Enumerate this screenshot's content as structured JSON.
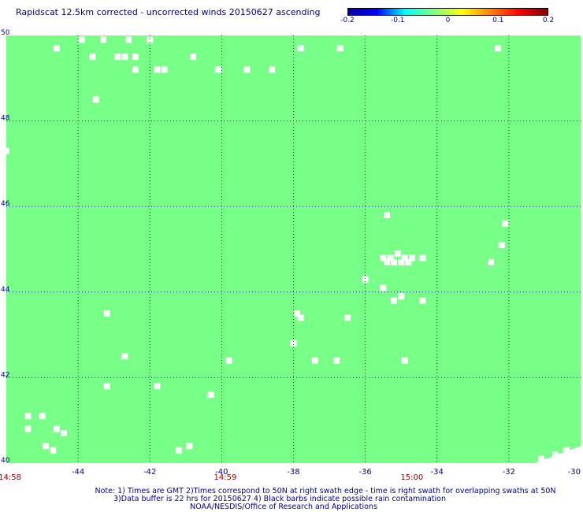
{
  "title": "Rapidscat 12.5km corrected - uncorrected winds 20150627 ascending",
  "colors": {
    "field": "#77ff88",
    "gridline": "#1a1a80",
    "text": "#00008b",
    "time_label": "#8b0000"
  },
  "colorbar": {
    "tick_labels": [
      "-0.2",
      "-0.1",
      "0",
      "0.1",
      "0.2"
    ],
    "tick_values": [
      -0.2,
      -0.1,
      0,
      0.1,
      0.2
    ],
    "range": [
      -0.2,
      0.2
    ],
    "colors": [
      "#0000a0",
      "#0000ff",
      "#00ffff",
      "#80ff80",
      "#ffff00",
      "#ff8000",
      "#ff0000",
      "#800000"
    ]
  },
  "time_labels": [
    {
      "text": "14:58",
      "lon": -45.9
    },
    {
      "text": "14:59",
      "lon": -39.9
    },
    {
      "text": "15:00",
      "lon": -34.7
    }
  ],
  "notes": [
    "Note: 1) Times are GMT 2)Times correspond to 50N at right swath edge - time is right swath for overlapping swaths at 50N",
    "3)Data buffer is 22 hrs for 20150627 4) Black barbs indicate possible rain contamination",
    "NOAA/NESDIS/Office of Research and Applications"
  ],
  "chart_data": {
    "type": "heatmap",
    "title": "Rapidscat 12.5km corrected - uncorrected winds 20150627 ascending",
    "xlim": [
      -46,
      -30
    ],
    "ylim": [
      40,
      50
    ],
    "x_ticks": [
      -44,
      -42,
      -40,
      -38,
      -36,
      -34,
      -32,
      -30
    ],
    "y_ticks": [
      40,
      42,
      44,
      46,
      48,
      50
    ],
    "x_tick_labels": [
      "-44",
      "-42",
      "-40",
      "-38",
      "-36",
      "-34",
      "-32",
      "-30"
    ],
    "y_tick_labels": [
      "40",
      "42",
      "44",
      "46",
      "48",
      "50"
    ],
    "grid": true,
    "field_value": 0,
    "missing_cells": [
      [
        -44.6,
        49.7
      ],
      [
        -43.9,
        49.9
      ],
      [
        -43.6,
        49.5
      ],
      [
        -43.3,
        49.9
      ],
      [
        -42.9,
        49.5
      ],
      [
        -42.7,
        49.5
      ],
      [
        -42.6,
        49.9
      ],
      [
        -42.4,
        49.5
      ],
      [
        -42.4,
        49.2
      ],
      [
        -42.0,
        49.9
      ],
      [
        -41.8,
        49.2
      ],
      [
        -41.6,
        49.2
      ],
      [
        -40.8,
        49.5
      ],
      [
        -40.1,
        49.2
      ],
      [
        -39.3,
        49.2
      ],
      [
        -38.6,
        49.2
      ],
      [
        -37.8,
        49.7
      ],
      [
        -36.7,
        49.7
      ],
      [
        -32.3,
        49.7
      ],
      [
        -43.5,
        48.5
      ],
      [
        -46.0,
        47.3
      ],
      [
        -35.4,
        45.8
      ],
      [
        -32.1,
        45.6
      ],
      [
        -32.2,
        45.1
      ],
      [
        -35.5,
        44.8
      ],
      [
        -35.3,
        44.8
      ],
      [
        -35.1,
        44.9
      ],
      [
        -34.9,
        44.8
      ],
      [
        -34.7,
        44.8
      ],
      [
        -34.4,
        44.8
      ],
      [
        -35.4,
        44.7
      ],
      [
        -35.2,
        44.7
      ],
      [
        -35.0,
        44.7
      ],
      [
        -34.8,
        44.7
      ],
      [
        -32.5,
        44.7
      ],
      [
        -36.0,
        44.3
      ],
      [
        -35.5,
        44.1
      ],
      [
        -35.0,
        43.9
      ],
      [
        -35.2,
        43.8
      ],
      [
        -34.4,
        43.8
      ],
      [
        -43.2,
        43.5
      ],
      [
        -37.9,
        43.5
      ],
      [
        -37.8,
        43.4
      ],
      [
        -36.5,
        43.4
      ],
      [
        -38.0,
        42.8
      ],
      [
        -42.7,
        42.5
      ],
      [
        -39.8,
        42.4
      ],
      [
        -37.4,
        42.4
      ],
      [
        -36.8,
        42.4
      ],
      [
        -34.9,
        42.4
      ],
      [
        -43.2,
        41.8
      ],
      [
        -41.8,
        41.8
      ],
      [
        -40.3,
        41.6
      ],
      [
        -45.4,
        41.1
      ],
      [
        -45.0,
        41.1
      ],
      [
        -45.4,
        40.8
      ],
      [
        -44.6,
        40.8
      ],
      [
        -44.4,
        40.7
      ],
      [
        -44.9,
        40.4
      ],
      [
        -44.7,
        40.3
      ],
      [
        -41.2,
        40.3
      ],
      [
        -40.9,
        40.4
      ],
      [
        -31.1,
        40.1
      ],
      [
        -30.7,
        40.2
      ],
      [
        -30.4,
        40.3
      ]
    ]
  }
}
